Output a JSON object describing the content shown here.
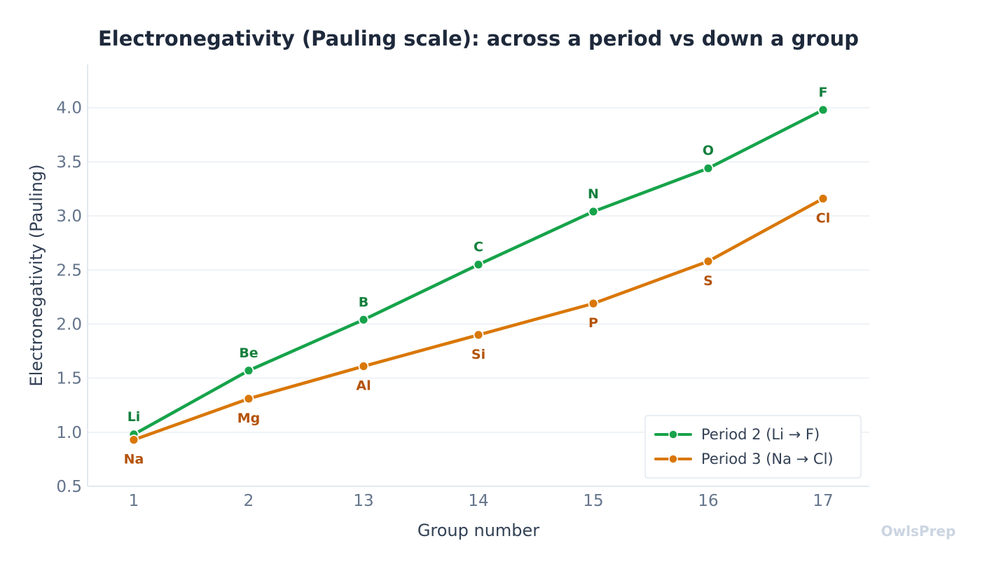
{
  "chart_data": {
    "type": "line",
    "title": "Electronegativity (Pauling scale): across a period vs down a group",
    "xlabel": "Group number",
    "ylabel": "Electronegativity  (Pauling)",
    "categories": [
      "1",
      "2",
      "13",
      "14",
      "15",
      "16",
      "17"
    ],
    "ylim": [
      0.5,
      4.4
    ],
    "yticks": [
      "0.5",
      "1.0",
      "1.5",
      "2.0",
      "2.5",
      "3.0",
      "3.5",
      "4.0"
    ],
    "grid": "horizontal",
    "legend_position": "bottom-right",
    "series": [
      {
        "name": "Period 2  (Li → F)",
        "color": "#16a34a",
        "label_color": "#15803d",
        "label_position": "above",
        "values": [
          0.98,
          1.57,
          2.04,
          2.55,
          3.04,
          3.44,
          3.98
        ],
        "point_labels": [
          "Li",
          "Be",
          "B",
          "C",
          "N",
          "O",
          "F"
        ]
      },
      {
        "name": "Period 3  (Na → Cl)",
        "color": "#d97706",
        "label_color": "#b45309",
        "label_position": "below",
        "values": [
          0.93,
          1.31,
          1.61,
          1.9,
          2.19,
          2.58,
          3.16
        ],
        "point_labels": [
          "Na",
          "Mg",
          "Al",
          "Si",
          "P",
          "S",
          "Cl"
        ]
      }
    ]
  },
  "watermark": "OwlsPrep"
}
